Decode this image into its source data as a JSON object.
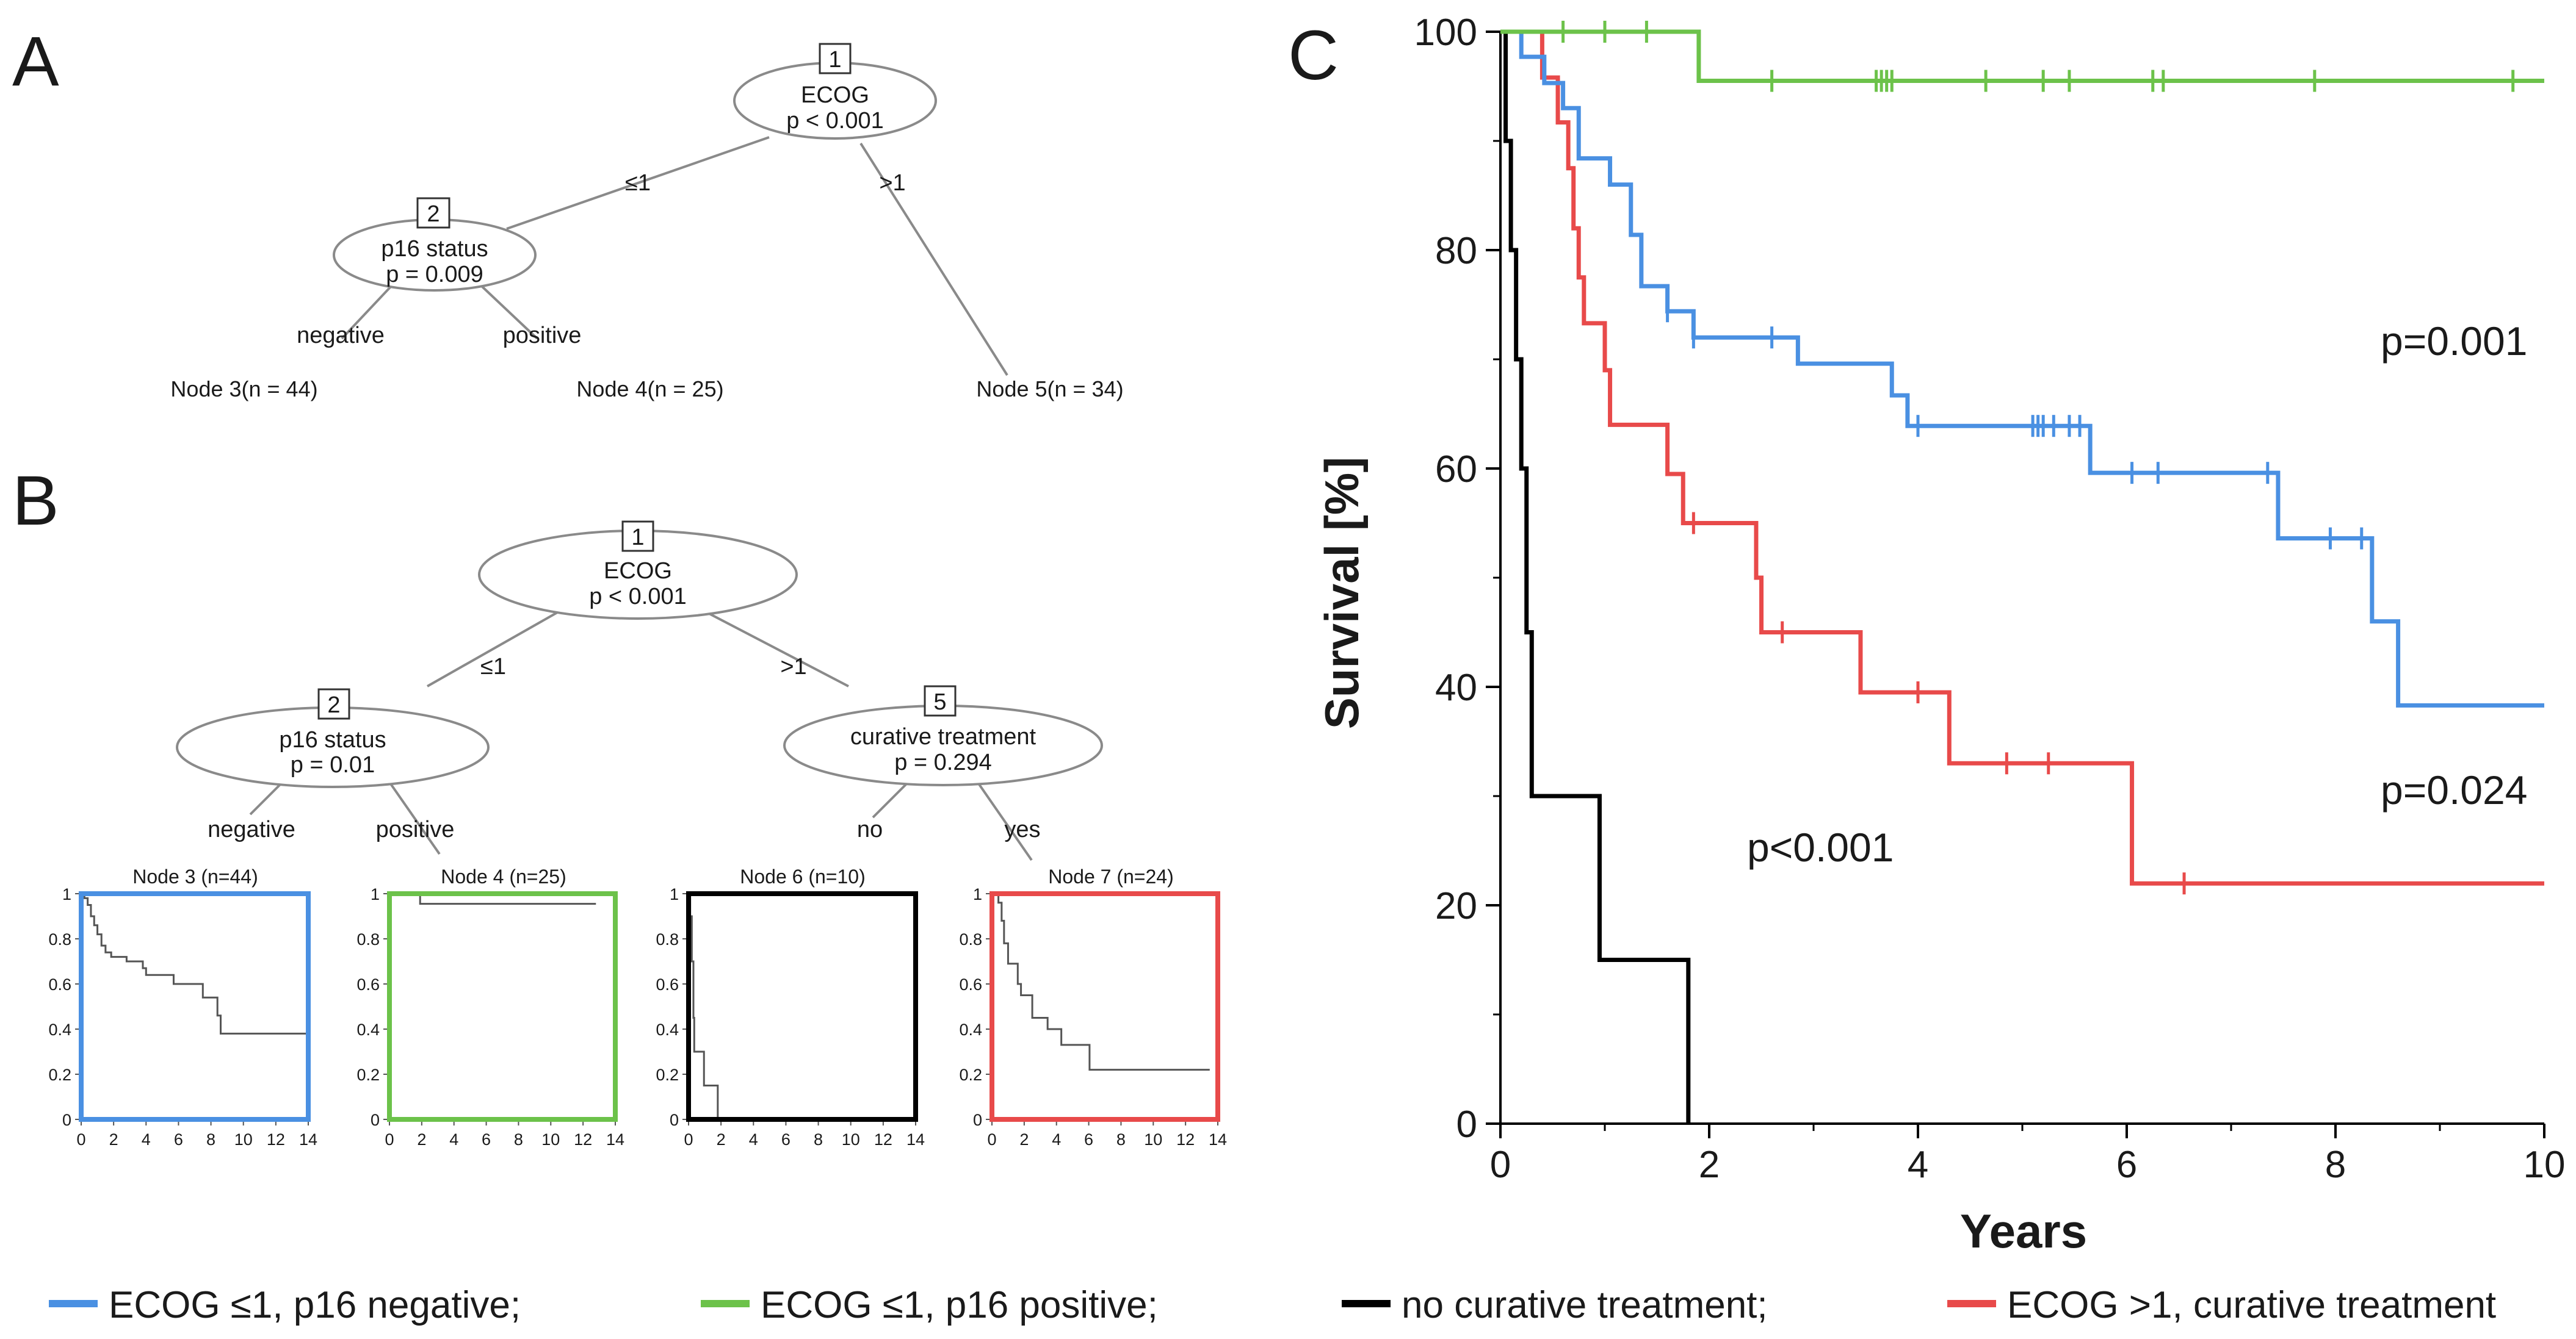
{
  "panels": {
    "a": "A",
    "b": "B",
    "c": "C"
  },
  "treeA": {
    "node1": {
      "num": "1",
      "label": "ECOG",
      "p": "p < 0.001"
    },
    "node2": {
      "num": "2",
      "label": "p16 status",
      "p": "p = 0.009"
    },
    "edge_left": "≤1",
    "edge_right": ">1",
    "edge_negative": "negative",
    "edge_positive": "positive",
    "leaf3": "Node 3(n = 44)",
    "leaf4": "Node 4(n = 25)",
    "leaf5": "Node 5(n = 34)"
  },
  "treeB": {
    "node1": {
      "num": "1",
      "label": "ECOG",
      "p": "p < 0.001"
    },
    "node2": {
      "num": "2",
      "label": "p16 status",
      "p": "p = 0.01"
    },
    "node5": {
      "num": "5",
      "label": "curative treatment",
      "p": "p = 0.294"
    },
    "edge_left": "≤1",
    "edge_right": ">1",
    "edge_negative": "negative",
    "edge_positive": "positive",
    "edge_no": "no",
    "edge_yes": "yes",
    "leaf3": "Node 3 (n=44)",
    "leaf4": "Node 4 (n=25)",
    "leaf6": "Node 6 (n=10)",
    "leaf7": "Node 7 (n=24)"
  },
  "mini_axes": {
    "y_ticks": [
      "1",
      "0.8",
      "0.6",
      "0.4",
      "0.2",
      "0"
    ],
    "x_ticks": [
      "0",
      "2",
      "4",
      "6",
      "8",
      "10",
      "12",
      "14"
    ]
  },
  "colors": {
    "blue": "#4a90e2",
    "green": "#6cc24a",
    "black": "#000000",
    "red": "#e84a4a",
    "gray": "#555555"
  },
  "chart_data": {
    "type": "line",
    "title": "",
    "xlabel": "Years",
    "ylabel": "Survival [%]",
    "xlim": [
      0,
      10
    ],
    "ylim": [
      0,
      100
    ],
    "x_ticks": [
      0,
      2,
      4,
      6,
      8,
      10
    ],
    "y_ticks": [
      0,
      20,
      40,
      60,
      80,
      100
    ],
    "annotations": [
      "p=0.001",
      "p=0.024",
      "p<0.001"
    ],
    "series": [
      {
        "name": "ECOG ≤1, p16 negative;",
        "color": "#4a90e2",
        "steps": [
          [
            0,
            100
          ],
          [
            0.2,
            97.7
          ],
          [
            0.42,
            95.3
          ],
          [
            0.6,
            93
          ],
          [
            0.75,
            88.4
          ],
          [
            1.05,
            86
          ],
          [
            1.25,
            81.4
          ],
          [
            1.35,
            76.7
          ],
          [
            1.6,
            74.4
          ],
          [
            1.85,
            72
          ],
          [
            2.85,
            69.6
          ],
          [
            3.75,
            66.7
          ],
          [
            3.9,
            63.9
          ],
          [
            5.65,
            59.6
          ],
          [
            7.45,
            53.6
          ],
          [
            8.35,
            46
          ],
          [
            8.6,
            38.3
          ],
          [
            10,
            38.3
          ]
        ],
        "censor": [
          [
            1.6,
            74.4
          ],
          [
            1.85,
            72
          ],
          [
            2.6,
            72
          ],
          [
            4,
            63.9
          ],
          [
            5.1,
            63.9
          ],
          [
            5.15,
            63.9
          ],
          [
            5.2,
            63.9
          ],
          [
            5.3,
            63.9
          ],
          [
            5.45,
            63.9
          ],
          [
            5.55,
            63.9
          ],
          [
            6.05,
            59.6
          ],
          [
            6.3,
            59.6
          ],
          [
            7.35,
            59.6
          ],
          [
            7.95,
            53.6
          ],
          [
            8.25,
            53.6
          ]
        ]
      },
      {
        "name": "ECOG ≤1, p16 positive;",
        "color": "#6cc24a",
        "steps": [
          [
            0,
            100
          ],
          [
            1.9,
            95.5
          ],
          [
            10,
            95.5
          ]
        ],
        "censor": [
          [
            0.6,
            100
          ],
          [
            1.0,
            100
          ],
          [
            1.4,
            100
          ],
          [
            2.6,
            95.5
          ],
          [
            3.6,
            95.5
          ],
          [
            3.65,
            95.5
          ],
          [
            3.7,
            95.5
          ],
          [
            3.75,
            95.5
          ],
          [
            4.65,
            95.5
          ],
          [
            5.2,
            95.5
          ],
          [
            5.45,
            95.5
          ],
          [
            6.25,
            95.5
          ],
          [
            6.35,
            95.5
          ],
          [
            7.8,
            95.5
          ],
          [
            9.7,
            95.5
          ]
        ]
      },
      {
        "name": "no curative treatment;",
        "color": "#000000",
        "steps": [
          [
            0,
            100
          ],
          [
            0.05,
            90
          ],
          [
            0.1,
            80
          ],
          [
            0.15,
            70
          ],
          [
            0.2,
            60
          ],
          [
            0.25,
            45
          ],
          [
            0.3,
            30
          ],
          [
            0.95,
            15
          ],
          [
            1.8,
            0
          ]
        ],
        "censor": []
      },
      {
        "name": "ECOG >1, curative treatment",
        "color": "#e84a4a",
        "steps": [
          [
            0,
            100
          ],
          [
            0.4,
            95.8
          ],
          [
            0.55,
            91.7
          ],
          [
            0.65,
            87.5
          ],
          [
            0.7,
            82
          ],
          [
            0.75,
            77.5
          ],
          [
            0.8,
            73.3
          ],
          [
            1.0,
            69
          ],
          [
            1.05,
            64
          ],
          [
            1.6,
            59.5
          ],
          [
            1.75,
            55
          ],
          [
            2.45,
            50
          ],
          [
            2.5,
            45
          ],
          [
            3.45,
            39.5
          ],
          [
            4.3,
            33
          ],
          [
            6.05,
            22
          ],
          [
            10,
            22
          ]
        ],
        "censor": [
          [
            1.85,
            55
          ],
          [
            2.7,
            45
          ],
          [
            4.0,
            39.5
          ],
          [
            4.85,
            33
          ],
          [
            5.25,
            33
          ],
          [
            6.55,
            22
          ]
        ]
      }
    ]
  },
  "mini_curves": [
    {
      "name": "Node 3",
      "color": "#4a90e2",
      "steps": [
        [
          0,
          1
        ],
        [
          0.2,
          0.98
        ],
        [
          0.4,
          0.95
        ],
        [
          0.6,
          0.9
        ],
        [
          0.8,
          0.86
        ],
        [
          1.0,
          0.82
        ],
        [
          1.25,
          0.77
        ],
        [
          1.5,
          0.74
        ],
        [
          1.85,
          0.72
        ],
        [
          2.8,
          0.7
        ],
        [
          3.8,
          0.67
        ],
        [
          4,
          0.64
        ],
        [
          5.7,
          0.6
        ],
        [
          7.5,
          0.54
        ],
        [
          8.4,
          0.46
        ],
        [
          8.6,
          0.38
        ],
        [
          14,
          0.38
        ]
      ]
    },
    {
      "name": "Node 4",
      "color": "#6cc24a",
      "steps": [
        [
          0,
          1
        ],
        [
          1.9,
          0.955
        ],
        [
          12.8,
          0.955
        ]
      ]
    },
    {
      "name": "Node 6",
      "color": "#000000",
      "steps": [
        [
          0,
          1
        ],
        [
          0.1,
          0.9
        ],
        [
          0.2,
          0.7
        ],
        [
          0.3,
          0.45
        ],
        [
          0.35,
          0.3
        ],
        [
          0.95,
          0.15
        ],
        [
          1.8,
          0
        ]
      ]
    },
    {
      "name": "Node 7",
      "color": "#e84a4a",
      "steps": [
        [
          0,
          1
        ],
        [
          0.4,
          0.96
        ],
        [
          0.6,
          0.88
        ],
        [
          0.75,
          0.78
        ],
        [
          1.0,
          0.69
        ],
        [
          1.6,
          0.6
        ],
        [
          1.8,
          0.55
        ],
        [
          2.5,
          0.45
        ],
        [
          3.45,
          0.4
        ],
        [
          4.3,
          0.33
        ],
        [
          6.05,
          0.22
        ],
        [
          13.5,
          0.22
        ]
      ]
    }
  ]
}
